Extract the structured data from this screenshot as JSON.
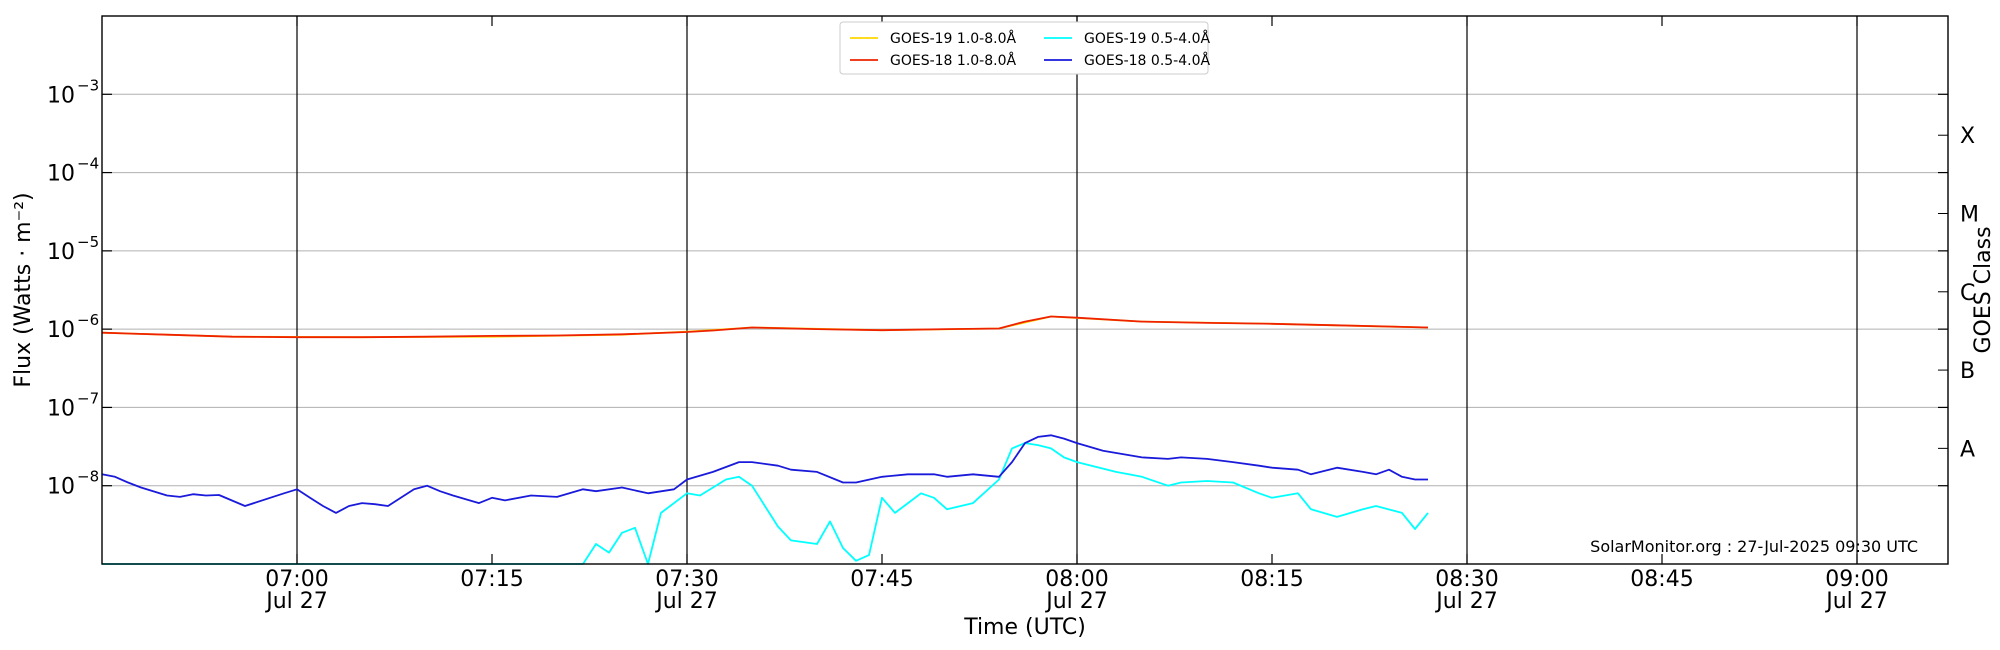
{
  "chart_data": {
    "type": "line",
    "xlabel": "Time (UTC)",
    "ylabel": "Flux (Watts · m⁻²)",
    "y2label": "GOES Class",
    "y_scale": "log",
    "ylim": [
      1e-09,
      0.01
    ],
    "xlim": [
      "2025-07-27 06:45",
      "2025-07-27 09:07"
    ],
    "grid": "horizontal at decades",
    "x_ticks": [
      {
        "t": "2025-07-27 07:00",
        "label": "07:00",
        "date": "Jul 27",
        "major": true
      },
      {
        "t": "2025-07-27 07:15",
        "label": "07:15",
        "date": "",
        "major": false
      },
      {
        "t": "2025-07-27 07:30",
        "label": "07:30",
        "date": "Jul 27",
        "major": true
      },
      {
        "t": "2025-07-27 07:45",
        "label": "07:45",
        "date": "",
        "major": false
      },
      {
        "t": "2025-07-27 08:00",
        "label": "08:00",
        "date": "Jul 27",
        "major": true
      },
      {
        "t": "2025-07-27 08:15",
        "label": "08:15",
        "date": "",
        "major": false
      },
      {
        "t": "2025-07-27 08:30",
        "label": "08:30",
        "date": "Jul 27",
        "major": true
      },
      {
        "t": "2025-07-27 08:45",
        "label": "08:45",
        "date": "",
        "major": false
      },
      {
        "t": "2025-07-27 09:00",
        "label": "09:00",
        "date": "Jul 27",
        "major": true
      }
    ],
    "y_ticks": [
      {
        "v": 1e-08,
        "label": "10",
        "exp": "−8"
      },
      {
        "v": 1e-07,
        "label": "10",
        "exp": "−7"
      },
      {
        "v": 1e-06,
        "label": "10",
        "exp": "−6"
      },
      {
        "v": 1e-05,
        "label": "10",
        "exp": "−5"
      },
      {
        "v": 0.0001,
        "label": "10",
        "exp": "−4"
      },
      {
        "v": 0.001,
        "label": "10",
        "exp": "−3"
      }
    ],
    "goes_classes": [
      {
        "label": "A",
        "v": 3e-08
      },
      {
        "label": "B",
        "v": 3e-07
      },
      {
        "label": "C",
        "v": 3e-06
      },
      {
        "label": "M",
        "v": 3e-05
      },
      {
        "label": "X",
        "v": 0.0003
      }
    ],
    "legend": {
      "placement": "top-center",
      "columns": 2
    },
    "series": [
      {
        "name": "GOES-19 1.0-8.0Å",
        "color": "#ffd700",
        "x": [
          "2025-07-27 06:45",
          "2025-07-27 06:55",
          "2025-07-27 07:05",
          "2025-07-27 07:15",
          "2025-07-27 07:25",
          "2025-07-27 07:30",
          "2025-07-27 07:35",
          "2025-07-27 07:45",
          "2025-07-27 07:54",
          "2025-07-27 07:58",
          "2025-07-27 08:05",
          "2025-07-27 08:15",
          "2025-07-27 08:27"
        ],
        "y": [
          9e-07,
          8e-07,
          7.9e-07,
          8e-07,
          8.5e-07,
          9.3e-07,
          1.05e-06,
          9.7e-07,
          1.02e-06,
          1.45e-06,
          1.25e-06,
          1.17e-06,
          1.05e-06
        ]
      },
      {
        "name": "GOES-18 1.0-8.0Å",
        "color": "#ee2200",
        "x": [
          "2025-07-27 06:45",
          "2025-07-27 06:50",
          "2025-07-27 06:55",
          "2025-07-27 07:00",
          "2025-07-27 07:05",
          "2025-07-27 07:10",
          "2025-07-27 07:15",
          "2025-07-27 07:20",
          "2025-07-27 07:25",
          "2025-07-27 07:30",
          "2025-07-27 07:32",
          "2025-07-27 07:35",
          "2025-07-27 07:40",
          "2025-07-27 07:45",
          "2025-07-27 07:50",
          "2025-07-27 07:54",
          "2025-07-27 07:56",
          "2025-07-27 07:58",
          "2025-07-27 08:00",
          "2025-07-27 08:05",
          "2025-07-27 08:10",
          "2025-07-27 08:15",
          "2025-07-27 08:20",
          "2025-07-27 08:27"
        ],
        "y": [
          9e-07,
          8.5e-07,
          8e-07,
          7.9e-07,
          7.9e-07,
          8e-07,
          8.2e-07,
          8.3e-07,
          8.6e-07,
          9.2e-07,
          9.6e-07,
          1.05e-06,
          1e-06,
          9.7e-07,
          1e-06,
          1.02e-06,
          1.25e-06,
          1.45e-06,
          1.4e-06,
          1.25e-06,
          1.2e-06,
          1.17e-06,
          1.12e-06,
          1.05e-06
        ]
      },
      {
        "name": "GOES-19 0.5-4.0Å",
        "color": "#00ffff",
        "x": [
          "2025-07-27 06:45",
          "2025-07-27 07:22",
          "2025-07-27 07:23",
          "2025-07-27 07:24",
          "2025-07-27 07:25",
          "2025-07-27 07:26",
          "2025-07-27 07:27",
          "2025-07-27 07:28",
          "2025-07-27 07:30",
          "2025-07-27 07:31",
          "2025-07-27 07:33",
          "2025-07-27 07:34",
          "2025-07-27 07:35",
          "2025-07-27 07:37",
          "2025-07-27 07:38",
          "2025-07-27 07:40",
          "2025-07-27 07:41",
          "2025-07-27 07:42",
          "2025-07-27 07:43",
          "2025-07-27 07:44",
          "2025-07-27 07:45",
          "2025-07-27 07:46",
          "2025-07-27 07:47",
          "2025-07-27 07:48",
          "2025-07-27 07:49",
          "2025-07-27 07:50",
          "2025-07-27 07:52",
          "2025-07-27 07:54",
          "2025-07-27 07:55",
          "2025-07-27 07:56",
          "2025-07-27 07:57",
          "2025-07-27 07:58",
          "2025-07-27 07:59",
          "2025-07-27 08:00",
          "2025-07-27 08:03",
          "2025-07-27 08:05",
          "2025-07-27 08:07",
          "2025-07-27 08:08",
          "2025-07-27 08:10",
          "2025-07-27 08:12",
          "2025-07-27 08:14",
          "2025-07-27 08:15",
          "2025-07-27 08:17",
          "2025-07-27 08:18",
          "2025-07-27 08:20",
          "2025-07-27 08:22",
          "2025-07-27 08:23",
          "2025-07-27 08:25",
          "2025-07-27 08:26",
          "2025-07-27 08:27"
        ],
        "y": [
          1e-09,
          1e-09,
          1.8e-09,
          1.4e-09,
          2.5e-09,
          2.9e-09,
          1e-09,
          4.5e-09,
          8e-09,
          7.5e-09,
          1.2e-08,
          1.3e-08,
          1e-08,
          3e-09,
          2e-09,
          1.8e-09,
          3.5e-09,
          1.6e-09,
          1.1e-09,
          1.3e-09,
          7e-09,
          4.5e-09,
          6e-09,
          8e-09,
          7e-09,
          5e-09,
          6e-09,
          1.2e-08,
          3e-08,
          3.5e-08,
          3.3e-08,
          3e-08,
          2.3e-08,
          2e-08,
          1.5e-08,
          1.3e-08,
          1e-08,
          1.1e-08,
          1.15e-08,
          1.1e-08,
          8e-09,
          7e-09,
          8e-09,
          5e-09,
          4e-09,
          5e-09,
          5.5e-09,
          4.5e-09,
          2.8e-09,
          4.5e-09
        ]
      },
      {
        "name": "GOES-18 0.5-4.0Å",
        "color": "#1a1adb",
        "x": [
          "2025-07-27 06:45",
          "2025-07-27 06:46",
          "2025-07-27 06:47",
          "2025-07-27 06:48",
          "2025-07-27 06:50",
          "2025-07-27 06:51",
          "2025-07-27 06:52",
          "2025-07-27 06:53",
          "2025-07-27 06:54",
          "2025-07-27 06:56",
          "2025-07-27 06:59",
          "2025-07-27 07:00",
          "2025-07-27 07:01",
          "2025-07-27 07:02",
          "2025-07-27 07:03",
          "2025-07-27 07:04",
          "2025-07-27 07:05",
          "2025-07-27 07:06",
          "2025-07-27 07:07",
          "2025-07-27 07:09",
          "2025-07-27 07:10",
          "2025-07-27 07:11",
          "2025-07-27 07:12",
          "2025-07-27 07:14",
          "2025-07-27 07:15",
          "2025-07-27 07:16",
          "2025-07-27 07:18",
          "2025-07-27 07:20",
          "2025-07-27 07:22",
          "2025-07-27 07:23",
          "2025-07-27 07:25",
          "2025-07-27 07:27",
          "2025-07-27 07:29",
          "2025-07-27 07:30",
          "2025-07-27 07:32",
          "2025-07-27 07:34",
          "2025-07-27 07:35",
          "2025-07-27 07:37",
          "2025-07-27 07:38",
          "2025-07-27 07:40",
          "2025-07-27 07:42",
          "2025-07-27 07:43",
          "2025-07-27 07:45",
          "2025-07-27 07:47",
          "2025-07-27 07:49",
          "2025-07-27 07:50",
          "2025-07-27 07:52",
          "2025-07-27 07:54",
          "2025-07-27 07:55",
          "2025-07-27 07:56",
          "2025-07-27 07:57",
          "2025-07-27 07:58",
          "2025-07-27 07:59",
          "2025-07-27 08:00",
          "2025-07-27 08:02",
          "2025-07-27 08:05",
          "2025-07-27 08:07",
          "2025-07-27 08:08",
          "2025-07-27 08:10",
          "2025-07-27 08:12",
          "2025-07-27 08:14",
          "2025-07-27 08:15",
          "2025-07-27 08:17",
          "2025-07-27 08:18",
          "2025-07-27 08:20",
          "2025-07-27 08:22",
          "2025-07-27 08:23",
          "2025-07-27 08:24",
          "2025-07-27 08:25",
          "2025-07-27 08:26",
          "2025-07-27 08:27"
        ],
        "y": [
          1.4e-08,
          1.3e-08,
          1.1e-08,
          9.5e-09,
          7.5e-09,
          7.2e-09,
          7.8e-09,
          7.5e-09,
          7.6e-09,
          5.5e-09,
          8e-09,
          9e-09,
          7e-09,
          5.5e-09,
          4.5e-09,
          5.5e-09,
          6e-09,
          5.8e-09,
          5.5e-09,
          9e-09,
          1e-08,
          8.5e-09,
          7.5e-09,
          6e-09,
          7e-09,
          6.5e-09,
          7.5e-09,
          7.2e-09,
          9e-09,
          8.5e-09,
          9.5e-09,
          8e-09,
          9e-09,
          1.2e-08,
          1.5e-08,
          2e-08,
          2e-08,
          1.8e-08,
          1.6e-08,
          1.5e-08,
          1.1e-08,
          1.1e-08,
          1.3e-08,
          1.4e-08,
          1.4e-08,
          1.3e-08,
          1.4e-08,
          1.3e-08,
          2e-08,
          3.5e-08,
          4.2e-08,
          4.4e-08,
          4e-08,
          3.5e-08,
          2.8e-08,
          2.3e-08,
          2.2e-08,
          2.3e-08,
          2.2e-08,
          2e-08,
          1.8e-08,
          1.7e-08,
          1.6e-08,
          1.4e-08,
          1.7e-08,
          1.5e-08,
          1.4e-08,
          1.6e-08,
          1.3e-08,
          1.2e-08,
          1.2e-08
        ]
      }
    ],
    "annotation": "SolarMonitor.org : 27-Jul-2025 09:30 UTC"
  }
}
